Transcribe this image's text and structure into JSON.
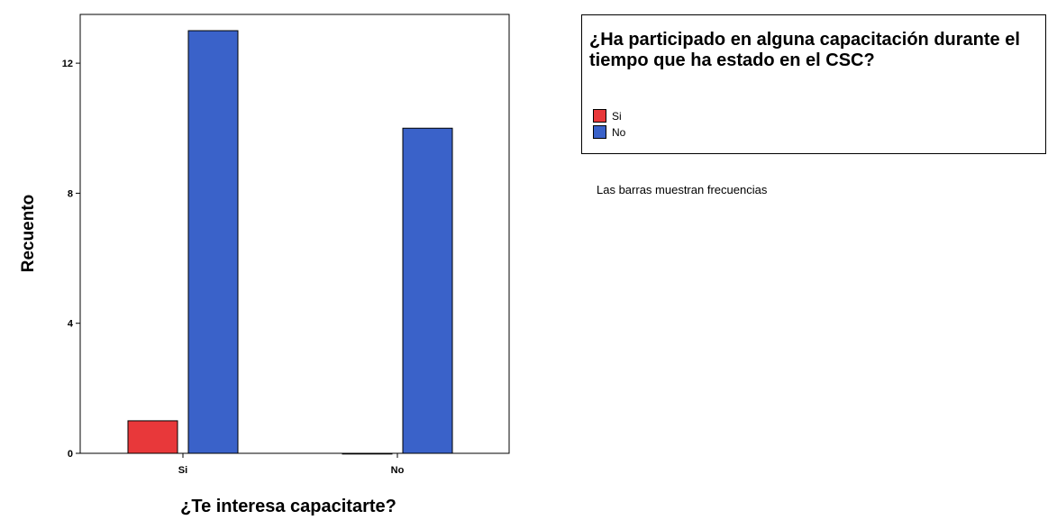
{
  "chart_data": {
    "type": "bar",
    "title": "",
    "xlabel": "¿Te interesa capacitarte?",
    "ylabel": "Recuento",
    "categories": [
      "Si",
      "No"
    ],
    "ylim": [
      0,
      13.5
    ],
    "yticks": [
      0,
      4,
      8,
      12
    ],
    "legend": {
      "title": "¿Ha participado en alguna capacitación durante el tiempo que ha estado en el CSC?",
      "placement": "right"
    },
    "series": [
      {
        "name": "Si",
        "color": "#e8383a",
        "values": [
          1,
          0
        ]
      },
      {
        "name": "No",
        "color": "#3a62c9",
        "values": [
          13,
          10
        ]
      }
    ],
    "footnote": "Las barras muestran frecuencias",
    "grid": false
  }
}
